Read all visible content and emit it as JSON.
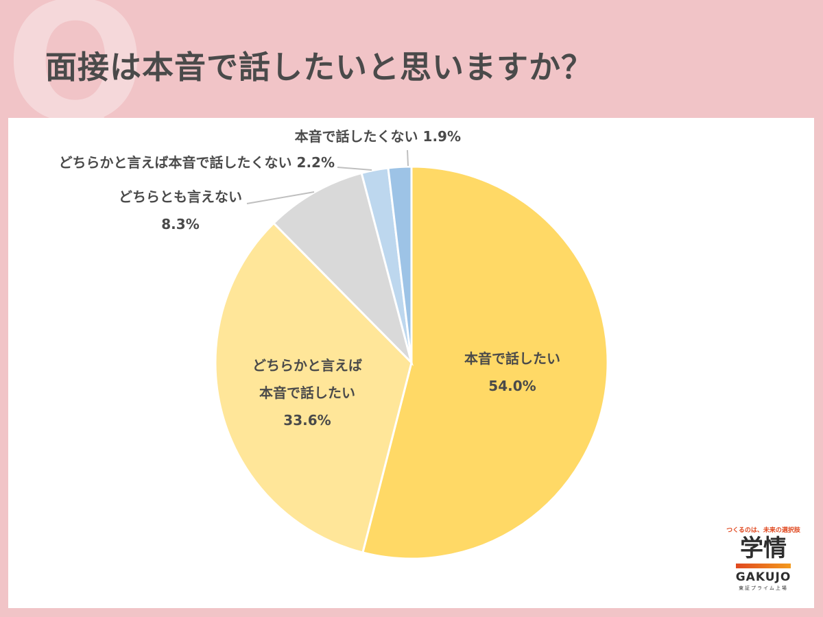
{
  "q_mark": "Q",
  "title": "面接は本音で話したいと思いますか？",
  "chart_data": {
    "type": "pie",
    "title": "面接は本音で話したいと思いますか？",
    "start_angle_deg": 0,
    "direction": "clockwise",
    "slices": [
      {
        "label": "本音で話したい",
        "value": 54.0,
        "display": "54.0%",
        "color": "#ffd966"
      },
      {
        "label": "どちらかと言えば本音で話したい",
        "value": 33.6,
        "display": "33.6%",
        "color": "#ffe699"
      },
      {
        "label": "どちらとも言えない",
        "value": 8.3,
        "display": "8.3%",
        "color": "#d9d9d9"
      },
      {
        "label": "どちらかと言えば本音で話したくない",
        "value": 2.2,
        "display": "2.2%",
        "color": "#bdd7ee"
      },
      {
        "label": "本音で話したくない",
        "value": 1.9,
        "display": "1.9%",
        "color": "#9dc3e6"
      }
    ],
    "data_labels": {
      "s0_line1": "本音で話したい",
      "s0_line2": "54.0%",
      "s1_line1": "どちらかと言えば",
      "s1_line2": "本音で話したい",
      "s1_line3": "33.6%",
      "s2_line1": "どちらとも言えない",
      "s2_line2": "8.3%",
      "s3_line1": "どちらかと言えば本音で話したくない 2.2%",
      "s4_line1": "本音で話したくない 1.9%"
    }
  },
  "logo": {
    "tagline": "つくるのは、未来の選択肢",
    "kanji": "学情",
    "name": "GAKUJO",
    "listing": "東証プライム上場"
  }
}
